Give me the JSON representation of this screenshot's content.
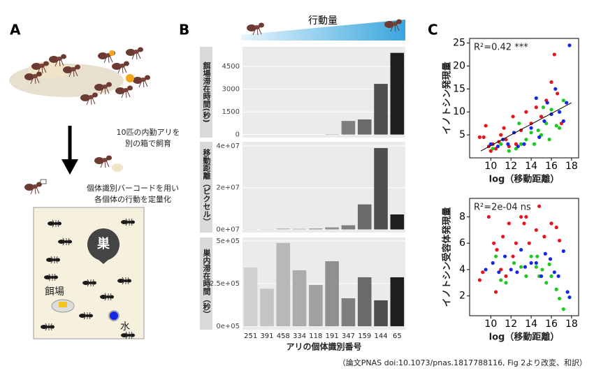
{
  "panel_labels": [
    "A",
    "B",
    "C"
  ],
  "illustration": {
    "step1": [
      "10匹の内勤アリを",
      "別の箱で飼育"
    ],
    "step2": [
      "個体識別バーコードを用い",
      "各個体の行動を定量化"
    ],
    "nest": "巣",
    "feeder": "餌場",
    "water": "水"
  },
  "caption": "（論文PNAS doi:10.1073/pnas.1817788116, Fig 2より改変、和訳）",
  "chart_data": [
    {
      "type": "bar",
      "annotation": "行動量",
      "y_label": "餌場滞在時間(秒)",
      "values": [
        0,
        0,
        0,
        0,
        0,
        20,
        900,
        1000,
        3350,
        5400
      ],
      "colors": [
        "#d0d0d0",
        "#c4c4c4",
        "#b8b8b8",
        "#acacac",
        "#a0a0a0",
        "#909090",
        "#7e7e7e",
        "#6a6a6a",
        "#4e4e4e",
        "#1e1e1e"
      ],
      "ylim": [
        -200,
        5800
      ],
      "yticks": [
        0,
        1500,
        3000,
        4500
      ],
      "grid": true
    },
    {
      "type": "bar",
      "y_label": "移動距離（ピクセル）",
      "values": [
        200000,
        200000,
        500000,
        300000,
        500000,
        1000000,
        2000000,
        12000000,
        39000000,
        7200000
      ],
      "colors": [
        "#d0d0d0",
        "#c4c4c4",
        "#b8b8b8",
        "#acacac",
        "#a0a0a0",
        "#909090",
        "#7e7e7e",
        "#6a6a6a",
        "#4e4e4e",
        "#1e1e1e"
      ],
      "ylim": [
        -1500000,
        42000000
      ],
      "yticks": [
        {
          "value": 0,
          "label": "0e+07"
        },
        {
          "value": 20000000,
          "label": "2e+07"
        },
        {
          "value": 40000000,
          "label": "4e+07"
        }
      ],
      "grid": true
    },
    {
      "type": "bar",
      "y_label": "巣内滞在時間（秒）",
      "x_label": "アリの個体識別番号",
      "categories": [
        "251",
        "391",
        "458",
        "334",
        "118",
        "191",
        "347",
        "159",
        "144",
        "65"
      ],
      "values": [
        344000,
        220000,
        488000,
        328000,
        242000,
        381000,
        164000,
        287000,
        152000,
        287000
      ],
      "colors": [
        "#d0d0d0",
        "#c4c4c4",
        "#b8b8b8",
        "#acacac",
        "#a0a0a0",
        "#909090",
        "#7e7e7e",
        "#6a6a6a",
        "#4e4e4e",
        "#1e1e1e"
      ],
      "ylim": [
        -20000,
        520000
      ],
      "yticks": [
        {
          "value": 0,
          "label": "0e+05"
        },
        {
          "value": 250000,
          "label": "2.5e+05"
        },
        {
          "value": 500000,
          "label": "5e+05"
        }
      ],
      "grid": true
    },
    {
      "type": "scatter",
      "annotation": "R²=0.42 ***",
      "x_label": "log（移動距離）",
      "y_label": "イノトシン発現量",
      "xlim": [
        7.9,
        18.7
      ],
      "xticks": [
        10,
        12,
        14,
        16,
        18
      ],
      "ylim": [
        0,
        26
      ],
      "yticks": [
        5,
        10,
        15,
        20,
        25
      ],
      "trend_line": {
        "x": [
          9,
          18
        ],
        "y": [
          1.5,
          12
        ]
      },
      "series": [
        {
          "color": "#e8141c",
          "x": [
            8.9,
            9.3,
            9.8,
            10.2,
            10.5,
            10.8,
            11,
            11.3,
            11.5,
            11.8,
            12.2,
            12.5,
            13,
            13.5,
            14,
            14.5,
            15,
            15.5,
            16,
            16.3,
            16.6,
            17,
            9.5,
            10
          ],
          "y": [
            4.5,
            4.5,
            2.5,
            3,
            2,
            3.5,
            5,
            6.5,
            4,
            2.5,
            9,
            3,
            6,
            10,
            7.5,
            11,
            9,
            12.5,
            16.5,
            22.5,
            14,
            7.5,
            7,
            1.5
          ]
        },
        {
          "color": "#1ec81e",
          "x": [
            10.2,
            11,
            11.8,
            12.5,
            13,
            13.5,
            14,
            14.3,
            14.7,
            15,
            15.2,
            15.5,
            15.8,
            16,
            16.5,
            16.8,
            17.2,
            12.8
          ],
          "y": [
            2,
            3,
            1.5,
            2,
            3,
            4,
            5.5,
            3,
            6,
            5,
            11,
            7.5,
            4,
            10.5,
            7,
            6.5,
            12.5,
            7.5
          ]
        },
        {
          "color": "#1428e6",
          "x": [
            10,
            10.7,
            11.2,
            11.7,
            12.3,
            12.7,
            13.3,
            14,
            14.5,
            14.8,
            15.3,
            15.6,
            16,
            16.4,
            16.8,
            17.2,
            17.5,
            17.8
          ],
          "y": [
            3,
            2.5,
            4,
            3,
            5.5,
            2.5,
            3,
            6.5,
            13,
            4.5,
            8,
            12,
            9.5,
            15,
            10,
            8,
            12,
            24.5
          ]
        }
      ]
    },
    {
      "type": "scatter",
      "annotation": "R²=2e-04 ns",
      "x_label": "log（移動距離）",
      "y_label": "イノトシン受容体発現量",
      "xlim": [
        7.9,
        18.7
      ],
      "xticks": [
        10,
        12,
        14,
        16,
        18
      ],
      "ylim": [
        0.5,
        9.4
      ],
      "yticks": [
        2,
        4,
        6,
        8
      ],
      "series": [
        {
          "color": "#e8141c",
          "x": [
            8.9,
            9.2,
            9.8,
            10.3,
            10.6,
            11,
            11.2,
            11.5,
            11.8,
            12.2,
            12.5,
            13,
            13.3,
            13.5,
            13.8,
            14.5,
            14.8,
            15.3,
            16,
            16.5,
            16.8,
            10.5
          ],
          "y": [
            3.2,
            3.8,
            8,
            6,
            5.5,
            4,
            6.5,
            3.5,
            7.5,
            5,
            6,
            8,
            7.5,
            8,
            6,
            7,
            8.8,
            6.5,
            7.5,
            7.2,
            6.2,
            2.3
          ]
        },
        {
          "color": "#1ec81e",
          "x": [
            10.5,
            11,
            11.5,
            12.3,
            13,
            13.5,
            14,
            14.5,
            14.8,
            15.1,
            15.5,
            16,
            16.5,
            16.8,
            17.2,
            14.6,
            15.8
          ],
          "y": [
            5,
            3.2,
            3,
            4.5,
            4.2,
            3.5,
            5,
            4.2,
            3.5,
            4,
            3,
            3.5,
            2.5,
            1.8,
            1,
            5,
            4.4
          ]
        },
        {
          "color": "#1428e6",
          "x": [
            9.5,
            10.2,
            10.8,
            11.4,
            12,
            12.6,
            13,
            13.4,
            14,
            14.5,
            15,
            15.4,
            15.9,
            16.3,
            16.7,
            17.2,
            17.6,
            17.8
          ],
          "y": [
            4,
            4.5,
            3.8,
            5,
            4,
            3.8,
            5.5,
            4.2,
            4.5,
            4.5,
            3.5,
            5.2,
            4.8,
            3.8,
            3.5,
            5.4,
            2.3,
            1.9
          ]
        }
      ]
    }
  ]
}
